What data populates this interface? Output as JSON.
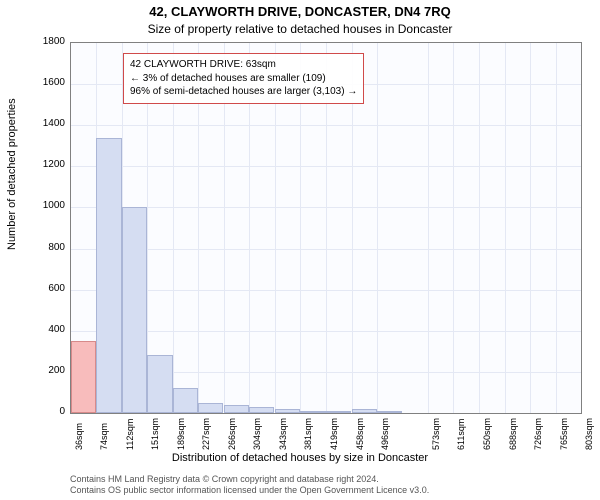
{
  "title_line1": "42, CLAYWORTH DRIVE, DONCASTER, DN4 7RQ",
  "title_line2": "Size of property relative to detached houses in Doncaster",
  "ylabel": "Number of detached properties",
  "xlabel": "Distribution of detached houses by size in Doncaster",
  "footer_line1": "Contains HM Land Registry data © Crown copyright and database right 2024.",
  "footer_line2": "Contains OS public sector information licensed under the Open Government Licence v3.0.",
  "annotation": {
    "line1": "42 CLAYWORTH DRIVE: 63sqm",
    "line2": "← 3% of detached houses are smaller (109)",
    "line3": "96% of semi-detached houses are larger (3,103) →"
  },
  "chart": {
    "type": "histogram",
    "background_color": "#fbfcff",
    "grid_color": "#e4e8f4",
    "border_color": "#808080",
    "bar_fill": "#d5ddf2",
    "bar_fill_highlight": "#f8bcbc",
    "bar_border": "#aab5d6",
    "bar_border_highlight": "#d78a8a",
    "annotation_border": "#d04a4a",
    "ylim": [
      0,
      1800
    ],
    "ytick_step": 200,
    "yticks": [
      0,
      200,
      400,
      600,
      800,
      1000,
      1200,
      1400,
      1600,
      1800
    ],
    "xticks": [
      "36sqm",
      "74sqm",
      "112sqm",
      "151sqm",
      "189sqm",
      "227sqm",
      "266sqm",
      "304sqm",
      "343sqm",
      "381sqm",
      "419sqm",
      "458sqm",
      "496sqm",
      "573sqm",
      "611sqm",
      "650sqm",
      "688sqm",
      "726sqm",
      "765sqm",
      "803sqm"
    ],
    "bars": [
      {
        "x": 36,
        "v": 350,
        "hl": true
      },
      {
        "x": 74,
        "v": 1340
      },
      {
        "x": 112,
        "v": 1000
      },
      {
        "x": 151,
        "v": 280
      },
      {
        "x": 189,
        "v": 120
      },
      {
        "x": 227,
        "v": 50
      },
      {
        "x": 266,
        "v": 40
      },
      {
        "x": 304,
        "v": 30
      },
      {
        "x": 343,
        "v": 20
      },
      {
        "x": 381,
        "v": 10
      },
      {
        "x": 419,
        "v": 5
      },
      {
        "x": 458,
        "v": 20
      },
      {
        "x": 496,
        "v": 5
      }
    ],
    "x_domain": [
      36,
      803
    ],
    "bar_width_sqm": 38
  }
}
